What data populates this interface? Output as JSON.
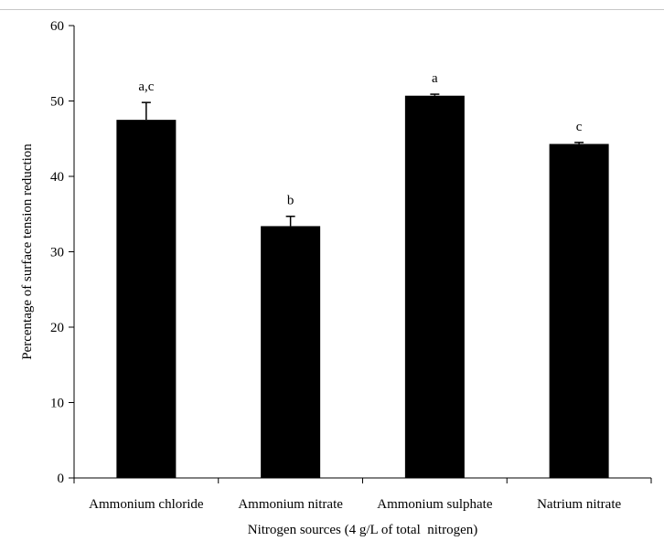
{
  "chart_data": {
    "type": "bar",
    "categories": [
      "Ammonium chloride",
      "Ammonium nitrate",
      "Ammonium sulphate",
      "Natrium nitrate"
    ],
    "series": [
      {
        "values": [
          47.5,
          33.4,
          50.7,
          44.3
        ],
        "error": [
          2.3,
          1.3,
          0.2,
          0.2
        ],
        "annotations": [
          "a,c",
          "b",
          "a",
          "c"
        ],
        "color": "#000000"
      }
    ],
    "title": "",
    "xlabel": "Nitrogen sources (4 g/L of total  nitrogen)",
    "ylabel": "Percentage of surface tension reduction",
    "ylim": [
      0,
      60
    ],
    "yticks": [
      0,
      10,
      20,
      30,
      40,
      50,
      60
    ],
    "grid": false,
    "legend": "none"
  }
}
